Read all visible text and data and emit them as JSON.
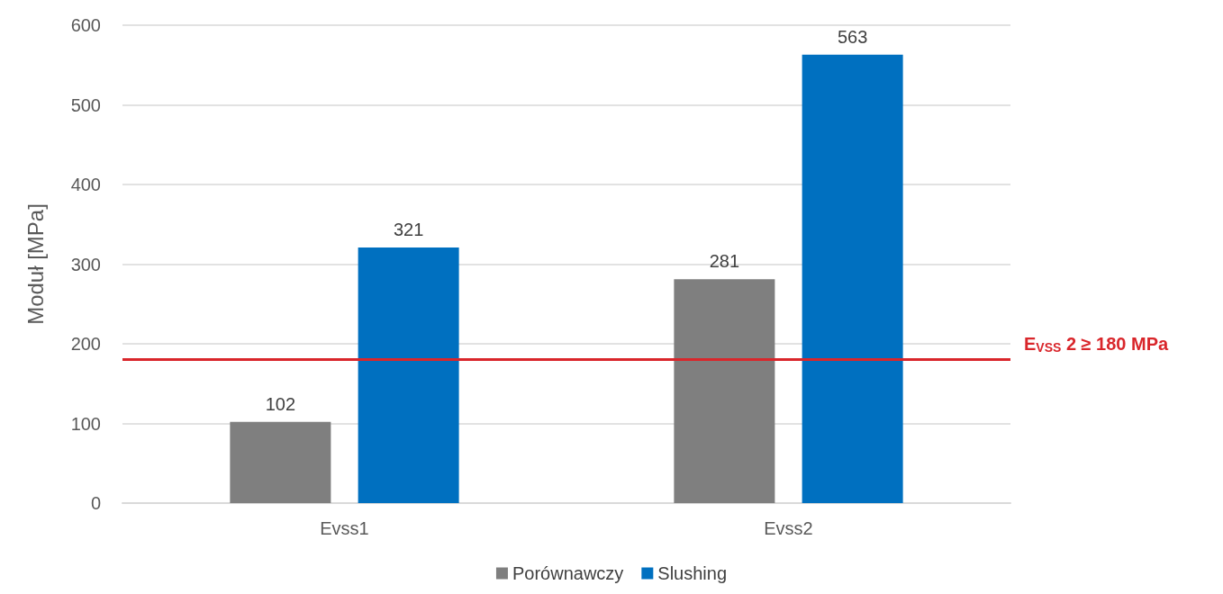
{
  "chart_data": {
    "type": "bar",
    "ylabel": "Moduł [MPa]",
    "categories": [
      "Evss1",
      "Evss2"
    ],
    "series": [
      {
        "name": "Porównawczy",
        "color": "#7f7f7f",
        "values": [
          102,
          281
        ]
      },
      {
        "name": "Slushing",
        "color": "#0070c0",
        "values": [
          321,
          563
        ]
      }
    ],
    "ylim": [
      0,
      600
    ],
    "yticks": [
      0,
      100,
      200,
      300,
      400,
      500,
      600
    ],
    "grid": "y",
    "legend": "bottom",
    "data_labels": true,
    "ref_lines": [
      {
        "axis": "y",
        "value": 180,
        "label": "E$_{VSS}$ 2 ≥ 180 MPa",
        "color": "#d9262b"
      }
    ]
  }
}
